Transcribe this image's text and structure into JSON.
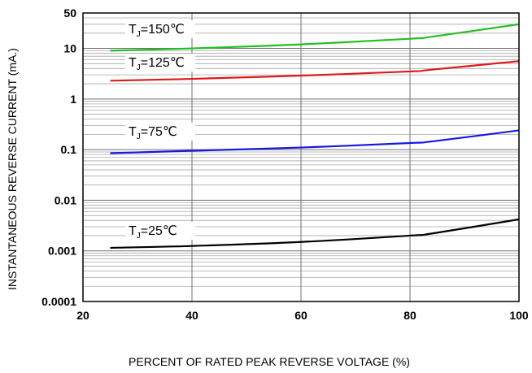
{
  "chart_data": {
    "type": "line",
    "xlabel": "PERCENT OF RATED PEAK REVERSE VOLTAGE (%)",
    "ylabel": "INSTANTANEOUS REVERSE CURRENT (mA.)",
    "xlim": [
      20,
      100
    ],
    "ylim": [
      0.0001,
      50
    ],
    "yscale": "log",
    "grid": true,
    "x_ticks": [
      "20",
      "40",
      "60",
      "80",
      "100"
    ],
    "y_ticks": [
      "0.0001",
      "0.001",
      "0.01",
      "0.1",
      "1",
      "10",
      "50"
    ],
    "series": [
      {
        "name": "TJ=150℃",
        "label_main": "T",
        "label_sub": "J",
        "label_rest": "=150℃",
        "color": "#22c022",
        "x": [
          25,
          40,
          60,
          80,
          84,
          100
        ],
        "y": [
          9.0,
          10.0,
          12.0,
          15.5,
          17.0,
          30.0
        ]
      },
      {
        "name": "TJ=125℃",
        "label_main": "T",
        "label_sub": "J",
        "label_rest": "=125℃",
        "color": "#e01818",
        "x": [
          25,
          40,
          60,
          80,
          84,
          100
        ],
        "y": [
          2.3,
          2.5,
          2.9,
          3.5,
          3.8,
          5.6
        ]
      },
      {
        "name": "TJ=75℃",
        "label_main": "T",
        "label_sub": "J",
        "label_rest": "=75℃",
        "color": "#1818e0",
        "x": [
          25,
          40,
          60,
          80,
          84,
          100
        ],
        "y": [
          0.085,
          0.095,
          0.11,
          0.135,
          0.145,
          0.24
        ]
      },
      {
        "name": "TJ=25℃",
        "label_main": "T",
        "label_sub": "J",
        "label_rest": "=25℃",
        "color": "#000000",
        "x": [
          25,
          40,
          60,
          80,
          84,
          100
        ],
        "y": [
          0.00115,
          0.00125,
          0.0015,
          0.002,
          0.0022,
          0.0042
        ]
      }
    ]
  }
}
